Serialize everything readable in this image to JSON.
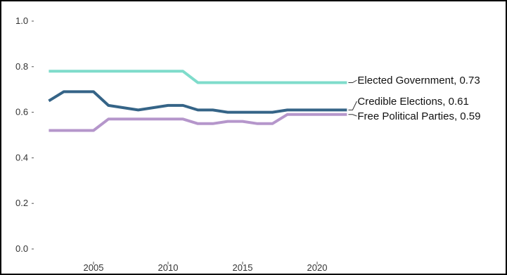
{
  "chart_data": {
    "type": "line",
    "title": "",
    "xlabel": "",
    "ylabel": "",
    "xlim": [
      2002,
      2022
    ],
    "ylim": [
      0,
      1
    ],
    "x_ticks": [
      "2005",
      "2010",
      "2015",
      "2020"
    ],
    "y_ticks": [
      "0.0",
      "0.2",
      "0.4",
      "0.6",
      "0.8",
      "1.0"
    ],
    "grid": false,
    "legend": "end-labels",
    "x": [
      2002,
      2003,
      2004,
      2005,
      2006,
      2007,
      2008,
      2009,
      2010,
      2011,
      2012,
      2013,
      2014,
      2015,
      2016,
      2017,
      2018,
      2019,
      2020,
      2021,
      2022
    ],
    "series": [
      {
        "name": "Elected Government",
        "end_label": "Elected Government, 0.73",
        "color": "#7fdccb",
        "values": [
          0.78,
          0.78,
          0.78,
          0.78,
          0.78,
          0.78,
          0.78,
          0.78,
          0.78,
          0.78,
          0.73,
          0.73,
          0.73,
          0.73,
          0.73,
          0.73,
          0.73,
          0.73,
          0.73,
          0.73,
          0.73
        ]
      },
      {
        "name": "Credible Elections",
        "end_label": "Credible Elections, 0.61",
        "color": "#356487",
        "values": [
          0.65,
          0.69,
          0.69,
          0.69,
          0.63,
          0.62,
          0.61,
          0.62,
          0.63,
          0.63,
          0.61,
          0.61,
          0.6,
          0.6,
          0.6,
          0.6,
          0.61,
          0.61,
          0.61,
          0.61,
          0.61
        ]
      },
      {
        "name": "Free Political Parties",
        "end_label": "Free Political Parties, 0.59",
        "color": "#b596cb",
        "values": [
          0.52,
          0.52,
          0.52,
          0.52,
          0.57,
          0.57,
          0.57,
          0.57,
          0.57,
          0.57,
          0.55,
          0.55,
          0.56,
          0.56,
          0.55,
          0.55,
          0.59,
          0.59,
          0.59,
          0.59,
          0.59
        ]
      }
    ]
  }
}
